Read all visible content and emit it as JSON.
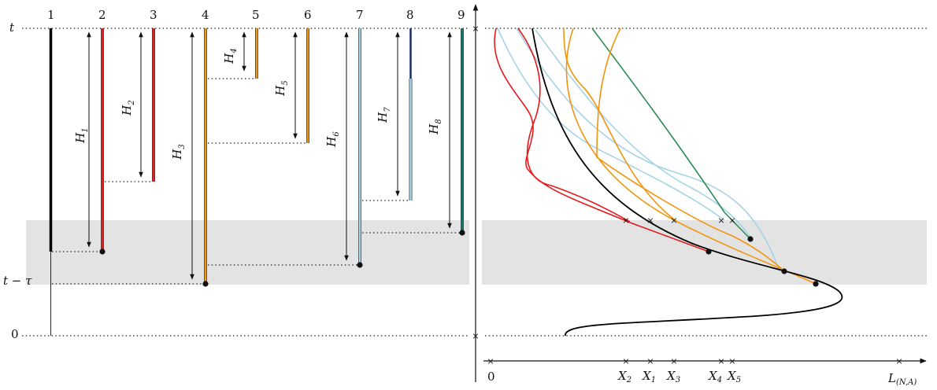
{
  "left": {
    "time_labels": {
      "t": "t",
      "t_minus_tau": "t − τ",
      "zero": "0"
    },
    "lineage_numbers": [
      "1",
      "2",
      "3",
      "4",
      "5",
      "6",
      "7",
      "8",
      "9"
    ],
    "heights": [
      {
        "base": "H",
        "sub": "1"
      },
      {
        "base": "H",
        "sub": "2"
      },
      {
        "base": "H",
        "sub": "3"
      },
      {
        "base": "H",
        "sub": "4"
      },
      {
        "base": "H",
        "sub": "5"
      },
      {
        "base": "H",
        "sub": "6"
      },
      {
        "base": "H",
        "sub": "7"
      },
      {
        "base": "H",
        "sub": "8"
      }
    ]
  },
  "right": {
    "axis_origin": "0",
    "axis_end": {
      "base": "L",
      "sub": "(N,A)"
    },
    "markers": [
      {
        "base": "X",
        "sub": "2"
      },
      {
        "base": "X",
        "sub": "1"
      },
      {
        "base": "X",
        "sub": "3"
      },
      {
        "base": "X",
        "sub": "4"
      },
      {
        "base": "X",
        "sub": "5"
      }
    ]
  },
  "colors": {
    "black": "#000000",
    "red": "#e41a1c",
    "orange": "#f0950f",
    "lightblue": "#a6d4e6",
    "green": "#2e8b57",
    "navy": "#1a2a5c",
    "teal": "#0f7a6a",
    "band": "#e3e3e3"
  }
}
